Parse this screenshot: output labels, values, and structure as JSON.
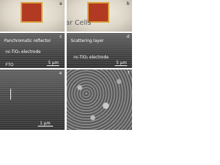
{
  "panels": [
    {
      "label": "a"
    },
    {
      "label": "b",
      "caption": "Dye Solar Cells"
    },
    {
      "label": "c",
      "layers": [
        "Panchromatic reflector",
        "nc-TiO₂ electrode",
        "FTO"
      ],
      "scale": "5 µm"
    },
    {
      "label": "d",
      "layers": [
        "Scattering layer",
        "nc-TiO₂ electrode"
      ],
      "scale": "5 µm"
    },
    {
      "label": "e",
      "scale": "1 µm"
    },
    {
      "label": "f"
    }
  ]
}
